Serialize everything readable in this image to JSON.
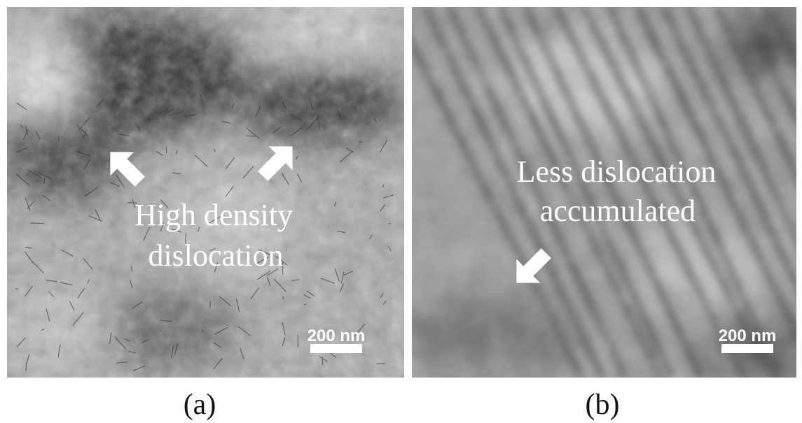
{
  "panels": [
    {
      "annotation": [
        "High density",
        "dislocation"
      ],
      "scale_bar": "200 nm",
      "caption": "(a)"
    },
    {
      "annotation": [
        "Less dislocation",
        "accumulated"
      ],
      "scale_bar": "200 nm",
      "caption": "(b)"
    }
  ]
}
